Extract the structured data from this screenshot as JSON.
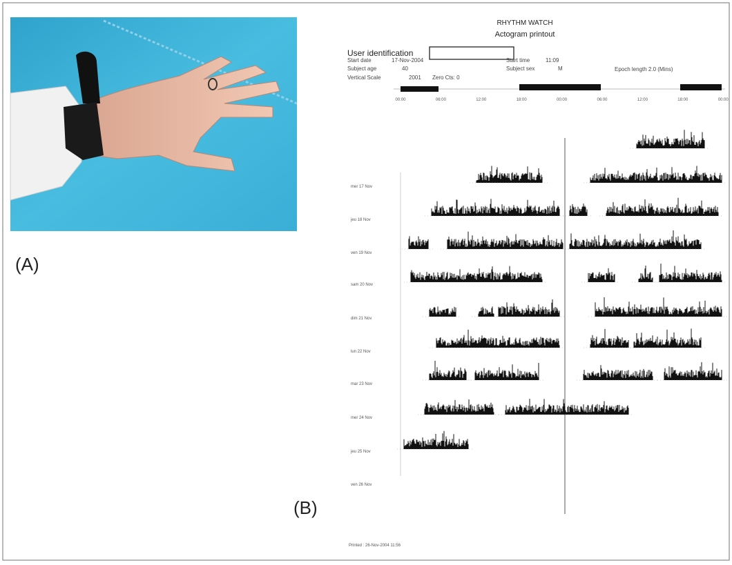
{
  "panel_a": {
    "label": "(A)"
  },
  "panel_b": {
    "label": "(B)",
    "title": "RHYTHM WATCH",
    "subtitle": "Actogram printout",
    "user_identification": "User identification",
    "fields": [
      [
        "Start date",
        "17-Nov-2004"
      ],
      [
        "Start time",
        "11:09"
      ],
      [
        "Subject age",
        "40"
      ],
      [
        "Subject sex",
        "M"
      ],
      [
        "Vertical Scale",
        "2001"
      ],
      [
        "Zero Cts: 0",
        "Epoch length 2.0 (Mins)"
      ]
    ],
    "time_labels": [
      "00:00",
      "06:00",
      "12:00",
      "18:00",
      "00:00",
      "06:00",
      "12:00",
      "18:00",
      "00:00"
    ],
    "day_labels": [
      "mer 17 Nov",
      "jeu 18 Nov",
      "ven 19 Nov",
      "sam 20 Nov",
      "dim 21 Nov",
      "lun 22 Nov",
      "mar 23 Nov",
      "mer 24 Nov",
      "jeu 25 Nov",
      "ven 26 Nov"
    ],
    "printed": "Printed : 26-Nov-2004 11:56"
  }
}
